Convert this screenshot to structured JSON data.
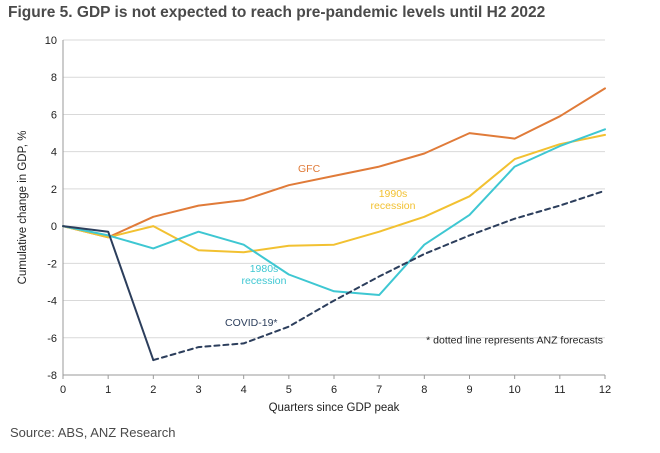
{
  "title": "Figure 5. GDP is not expected to reach pre-pandemic levels until H2 2022",
  "source": "Source: ABS, ANZ Research",
  "chart_data": {
    "type": "line",
    "title": "Figure 5. GDP is not expected to reach pre-pandemic levels until H2 2022",
    "xlabel": "Quarters since GDP peak",
    "ylabel": "Cumulative change in GDP, %",
    "xlim": [
      0,
      12
    ],
    "ylim": [
      -8,
      10
    ],
    "xticks": [
      0,
      1,
      2,
      3,
      4,
      5,
      6,
      7,
      8,
      9,
      10,
      11,
      12
    ],
    "yticks": [
      -8,
      -6,
      -4,
      -2,
      0,
      2,
      4,
      6,
      8,
      10
    ],
    "grid": "horizontal",
    "series": [
      {
        "name": "GFC",
        "label_lines": [
          "GFC"
        ],
        "color": "#e07b39",
        "dashed": false,
        "x": [
          0,
          1,
          2,
          3,
          4,
          5,
          6,
          7,
          8,
          9,
          10,
          11,
          12
        ],
        "values": [
          0,
          -0.6,
          0.5,
          1.1,
          1.4,
          2.2,
          2.7,
          3.2,
          3.9,
          5.0,
          4.7,
          5.9,
          7.4
        ]
      },
      {
        "name": "1990s recession",
        "label_lines": [
          "1990s",
          "recession"
        ],
        "color": "#f2c131",
        "dashed": false,
        "x": [
          0,
          1,
          2,
          3,
          4,
          5,
          6,
          7,
          8,
          9,
          10,
          11,
          12
        ],
        "values": [
          0,
          -0.6,
          0.0,
          -1.3,
          -1.4,
          -1.05,
          -1.0,
          -0.3,
          0.5,
          1.6,
          3.6,
          4.4,
          4.9
        ]
      },
      {
        "name": "1980s recession",
        "label_lines": [
          "1980s",
          "recession"
        ],
        "color": "#3ec7d2",
        "dashed": false,
        "x": [
          0,
          1,
          2,
          3,
          4,
          5,
          6,
          7,
          8,
          9,
          10,
          11,
          12
        ],
        "values": [
          0,
          -0.5,
          -1.2,
          -0.3,
          -1.0,
          -2.6,
          -3.5,
          -3.7,
          -1.0,
          0.6,
          3.2,
          4.3,
          5.2
        ]
      },
      {
        "name": "COVID-19 actual",
        "label_lines": [],
        "color": "#2c3e5c",
        "dashed": false,
        "x": [
          0,
          1,
          2
        ],
        "values": [
          0,
          -0.3,
          -7.2
        ]
      },
      {
        "name": "COVID-19 forecast",
        "label_lines": [
          "COVID-19*"
        ],
        "color": "#2c3e5c",
        "dashed": true,
        "x": [
          2,
          3,
          4,
          5,
          6,
          7,
          8,
          9,
          10,
          11,
          12
        ],
        "values": [
          -7.2,
          -6.5,
          -6.3,
          -5.4,
          -4.0,
          -2.7,
          -1.5,
          -0.5,
          0.4,
          1.1,
          1.9
        ]
      }
    ],
    "annotations": [
      {
        "text": "* dotted line represents ANZ forecasts",
        "x": 12,
        "y": -6.1,
        "anchor": "end"
      }
    ]
  }
}
